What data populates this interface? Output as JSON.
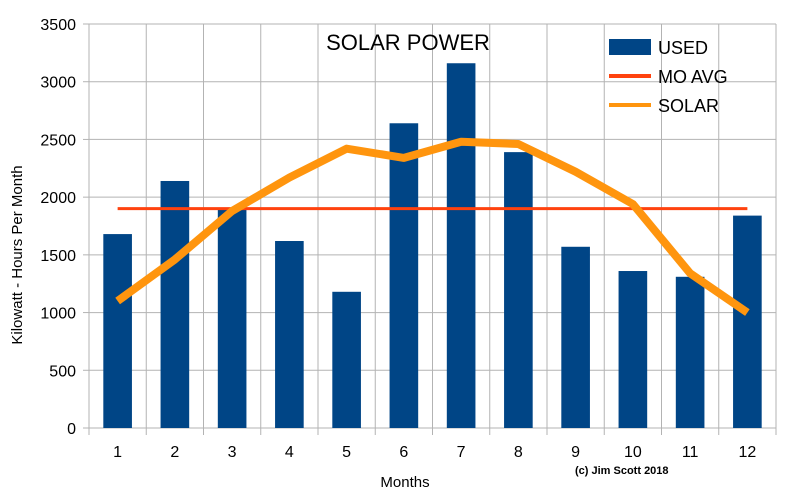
{
  "chart_data": {
    "type": "bar",
    "title": "SOLAR POWER",
    "xlabel": "Months",
    "ylabel": "Kilowatt - Hours Per Month",
    "categories": [
      "1",
      "2",
      "3",
      "4",
      "5",
      "6",
      "7",
      "8",
      "9",
      "10",
      "11",
      "12"
    ],
    "ylim": [
      0,
      3500
    ],
    "yticks": [
      0,
      500,
      1000,
      1500,
      2000,
      2500,
      3000,
      3500
    ],
    "grid": true,
    "legend_position": "top-right",
    "series": [
      {
        "name": "USED",
        "type": "bar",
        "color": "#004586",
        "values": [
          1680,
          2140,
          1890,
          1620,
          1180,
          2640,
          3160,
          2390,
          1570,
          1360,
          1310,
          1840
        ]
      },
      {
        "name": "MO AVG",
        "type": "line",
        "color": "#ff420e",
        "values": [
          1900,
          1900,
          1900,
          1900,
          1900,
          1900,
          1900,
          1900,
          1900,
          1900,
          1900,
          1900
        ]
      },
      {
        "name": "SOLAR",
        "type": "line",
        "color": "#ff950e",
        "values": [
          1100,
          1460,
          1880,
          2170,
          2420,
          2340,
          2480,
          2460,
          2220,
          1940,
          1340,
          1000
        ]
      }
    ],
    "credit": "(c) Jim Scott 2018"
  }
}
